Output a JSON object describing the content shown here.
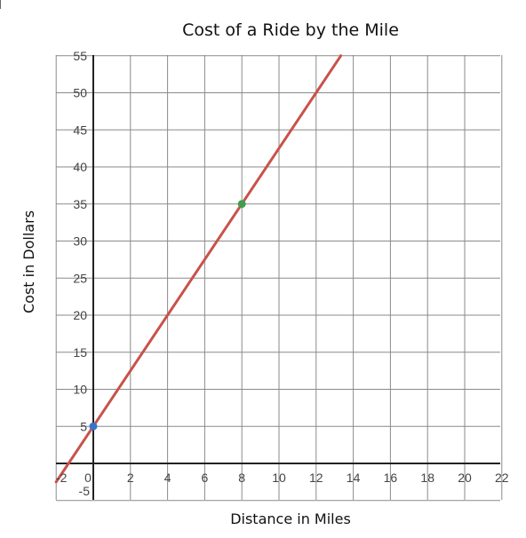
{
  "chart_data": {
    "type": "line",
    "title": "Cost of a Ride by the Mile",
    "xlabel": "Distance in Miles",
    "ylabel": "Cost in Dollars",
    "xlim": [
      -2,
      22
    ],
    "ylim": [
      -5,
      55
    ],
    "grid": true,
    "x_ticks": [
      "-2",
      "0",
      "2",
      "4",
      "6",
      "8",
      "10",
      "12",
      "14",
      "16",
      "18",
      "20",
      "22"
    ],
    "y_ticks": [
      "-5",
      "5",
      "10",
      "15",
      "20",
      "25",
      "30",
      "35",
      "40",
      "45",
      "50",
      "55"
    ],
    "series": [
      {
        "line_color": "#c8524a",
        "slope": 3.75,
        "intercept": 5,
        "x": [
          -2,
          13.33
        ],
        "y": [
          -2.5,
          55
        ]
      }
    ],
    "points": [
      {
        "x": 0,
        "y": 5,
        "color": "#3a73c9"
      },
      {
        "x": 8,
        "y": 35,
        "color": "#3f9e4b"
      }
    ]
  }
}
